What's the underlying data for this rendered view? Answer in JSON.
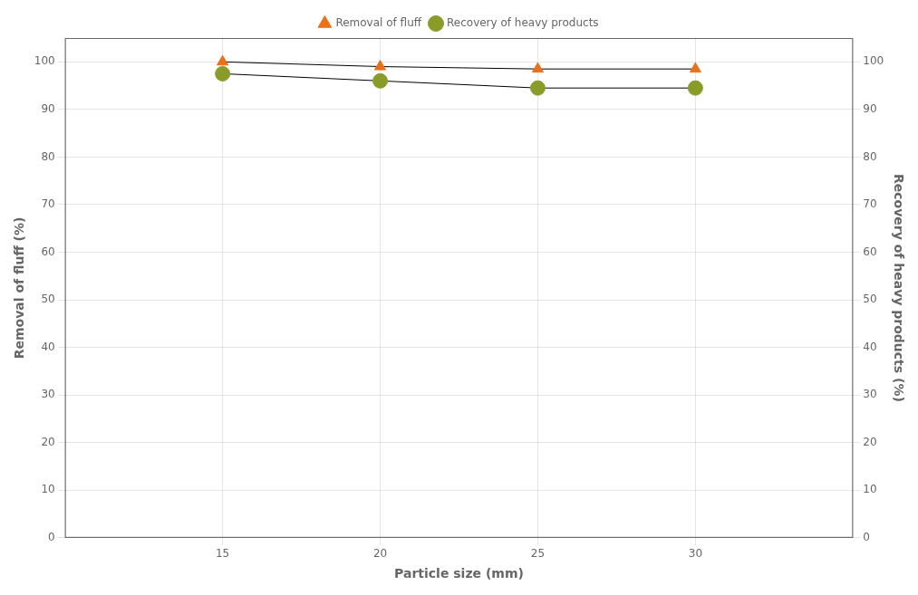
{
  "chart_data": {
    "type": "line",
    "x": [
      15,
      20,
      25,
      30
    ],
    "series": [
      {
        "name": "Removal of fluff",
        "color": "#E8711A",
        "marker": "triangle",
        "values": [
          100.0,
          99.0,
          98.5,
          98.5
        ]
      },
      {
        "name": "Recovery of heavy products",
        "color": "#8B9B2A",
        "marker": "circle",
        "values": [
          97.5,
          96.0,
          94.5,
          94.5
        ]
      }
    ],
    "color": "#000000",
    "xlabel": "Particle size (mm)",
    "ylabel": "Removal of fluff (%)",
    "y2label": "Recovery of heavy products (%)",
    "xlim": [
      10,
      35
    ],
    "xticks": [
      15,
      20,
      25,
      30
    ],
    "ylim": [
      0,
      105
    ],
    "yticks": [
      0,
      10,
      20,
      30,
      40,
      50,
      60,
      70,
      80,
      90,
      100
    ],
    "y2lim": [
      0,
      105
    ],
    "y2ticks": [
      0,
      10,
      20,
      30,
      40,
      50,
      60,
      70,
      80,
      90,
      100
    ],
    "grid": true,
    "legend": "top"
  }
}
